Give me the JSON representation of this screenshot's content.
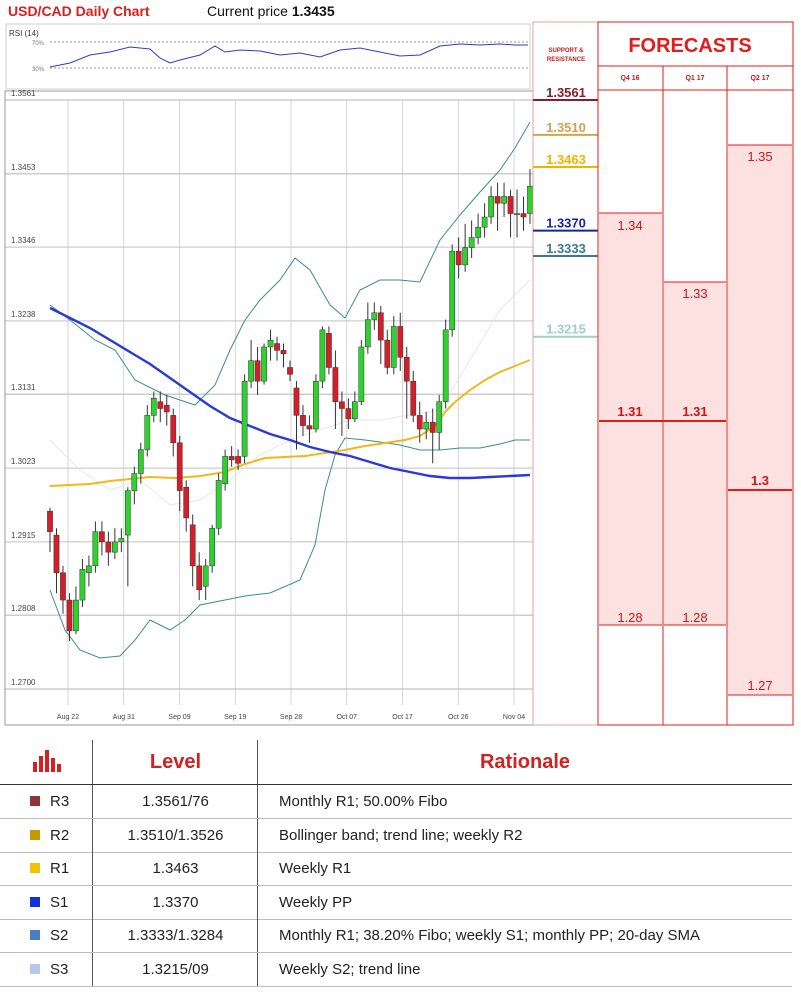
{
  "header": {
    "title": "USD/CAD Daily Chart",
    "current_label": "Current price",
    "current_value": "1.3435"
  },
  "rsi": {
    "label": "RSI (14)",
    "level_high": "70%",
    "level_low": "30%"
  },
  "sr_header": "SUPPORT & RESISTANCE",
  "forecasts": {
    "title": "FORECASTS",
    "columns": [
      "Q4 16",
      "Q1 17",
      "Q2 17"
    ],
    "q4_16": {
      "high": "1.34",
      "mid": "1.31",
      "low": "1.28"
    },
    "q1_17": {
      "high": "1.33",
      "mid": "1.31",
      "low": "1.28"
    },
    "q2_17": {
      "high": "1.35",
      "mid": "1.3",
      "low": "1.27"
    },
    "colors": {
      "band": "#fde0e0",
      "line": "#e21b1b",
      "text": "#c81818"
    }
  },
  "chart_data": {
    "type": "candlestick",
    "title": "USD/CAD Daily Chart",
    "y_ticks": [
      "1.3561",
      "1.3453",
      "1.3346",
      "1.3238",
      "1.3131",
      "1.3023",
      "1.2915",
      "1.2808",
      "1.2700"
    ],
    "ylim": [
      1.27,
      1.3561
    ],
    "x_ticks": [
      "Aug 22",
      "Aug 31",
      "Sep 09",
      "Sep 19",
      "Sep 28",
      "Oct 07",
      "Oct 17",
      "Oct 26",
      "Nov 04"
    ],
    "grid": true,
    "levels": [
      {
        "name": "R3",
        "value": 1.3561,
        "label": "1.3561",
        "color": "#8b1a2e"
      },
      {
        "name": "R2",
        "value": 1.351,
        "label": "1.3510",
        "color": "#d4a250"
      },
      {
        "name": "R1",
        "value": 1.3463,
        "label": "1.3463",
        "color": "#f2b300"
      },
      {
        "name": "S1",
        "value": 1.337,
        "label": "1.3370",
        "color": "#1424a8"
      },
      {
        "name": "S2",
        "value": 1.3333,
        "label": "1.3333",
        "color": "#3b7a95"
      },
      {
        "name": "S3",
        "value": 1.3215,
        "label": "1.3215",
        "color": "#9ed0c6"
      }
    ],
    "candles": [
      [
        1.296,
        1.293,
        1.2965,
        1.29
      ],
      [
        1.2925,
        1.287,
        1.2935,
        1.284
      ],
      [
        1.287,
        1.283,
        1.288,
        1.281
      ],
      [
        1.283,
        1.2785,
        1.284,
        1.277
      ],
      [
        1.2785,
        1.283,
        1.285,
        1.278
      ],
      [
        1.283,
        1.2875,
        1.289,
        1.282
      ],
      [
        1.287,
        1.288,
        1.2895,
        1.285
      ],
      [
        1.288,
        1.293,
        1.2945,
        1.287
      ],
      [
        1.293,
        1.2915,
        1.2945,
        1.2895
      ],
      [
        1.2915,
        1.29,
        1.293,
        1.288
      ],
      [
        1.29,
        1.2915,
        1.2935,
        1.289
      ],
      [
        1.2915,
        1.292,
        1.2935,
        1.29
      ],
      [
        1.2925,
        1.299,
        1.2995,
        1.285
      ],
      [
        1.299,
        1.3015,
        1.3025,
        1.297
      ],
      [
        1.3015,
        1.305,
        1.306,
        1.3
      ],
      [
        1.305,
        1.31,
        1.3115,
        1.304
      ],
      [
        1.31,
        1.3125,
        1.3135,
        1.309
      ],
      [
        1.312,
        1.311,
        1.3135,
        1.309
      ],
      [
        1.3115,
        1.3105,
        1.313,
        1.3085
      ],
      [
        1.31,
        1.306,
        1.311,
        1.304
      ],
      [
        1.306,
        1.299,
        1.307,
        1.296
      ],
      [
        1.2995,
        1.295,
        1.3005,
        1.293
      ],
      [
        1.294,
        1.288,
        1.2955,
        1.285
      ],
      [
        1.288,
        1.2845,
        1.29,
        1.283
      ],
      [
        1.285,
        1.288,
        1.289,
        1.283
      ],
      [
        1.288,
        1.2935,
        1.294,
        1.287
      ],
      [
        1.2935,
        1.3005,
        1.3015,
        1.2925
      ],
      [
        1.3,
        1.304,
        1.305,
        1.299
      ],
      [
        1.304,
        1.3035,
        1.3055,
        1.3025
      ],
      [
        1.304,
        1.303,
        1.305,
        1.302
      ],
      [
        1.304,
        1.315,
        1.316,
        1.303
      ],
      [
        1.315,
        1.318,
        1.321,
        1.314
      ],
      [
        1.318,
        1.315,
        1.32,
        1.313
      ],
      [
        1.315,
        1.32,
        1.3205,
        1.3145
      ],
      [
        1.32,
        1.321,
        1.3225,
        1.318
      ],
      [
        1.3205,
        1.3195,
        1.3215,
        1.318
      ],
      [
        1.3195,
        1.319,
        1.3205,
        1.317
      ],
      [
        1.317,
        1.316,
        1.318,
        1.315
      ],
      [
        1.314,
        1.31,
        1.315,
        1.305
      ],
      [
        1.31,
        1.3085,
        1.3115,
        1.307
      ],
      [
        1.3085,
        1.308,
        1.31,
        1.306
      ],
      [
        1.308,
        1.315,
        1.316,
        1.3075
      ],
      [
        1.315,
        1.3225,
        1.323,
        1.314
      ],
      [
        1.322,
        1.317,
        1.323,
        1.316
      ],
      [
        1.317,
        1.312,
        1.3195,
        1.308
      ],
      [
        1.312,
        1.311,
        1.3135,
        1.307
      ],
      [
        1.311,
        1.3095,
        1.3125,
        1.308
      ],
      [
        1.3095,
        1.312,
        1.3135,
        1.309
      ],
      [
        1.312,
        1.32,
        1.321,
        1.3115
      ],
      [
        1.32,
        1.324,
        1.3265,
        1.319
      ],
      [
        1.324,
        1.325,
        1.3265,
        1.3225
      ],
      [
        1.325,
        1.321,
        1.326,
        1.3175
      ],
      [
        1.321,
        1.317,
        1.3225,
        1.316
      ],
      [
        1.317,
        1.323,
        1.3245,
        1.316
      ],
      [
        1.323,
        1.3185,
        1.325,
        1.3165
      ],
      [
        1.3185,
        1.315,
        1.32,
        1.3095
      ],
      [
        1.315,
        1.31,
        1.3165,
        1.309
      ],
      [
        1.31,
        1.308,
        1.312,
        1.306
      ],
      [
        1.308,
        1.309,
        1.3105,
        1.3065
      ],
      [
        1.309,
        1.3075,
        1.311,
        1.303
      ],
      [
        1.3075,
        1.312,
        1.313,
        1.305
      ],
      [
        1.312,
        1.3225,
        1.324,
        1.311
      ],
      [
        1.3225,
        1.334,
        1.335,
        1.3215
      ],
      [
        1.334,
        1.332,
        1.336,
        1.33
      ],
      [
        1.332,
        1.3345,
        1.338,
        1.331
      ],
      [
        1.3345,
        1.336,
        1.3385,
        1.333
      ],
      [
        1.336,
        1.3375,
        1.3395,
        1.335
      ],
      [
        1.3375,
        1.339,
        1.341,
        1.336
      ],
      [
        1.339,
        1.342,
        1.3435,
        1.338
      ],
      [
        1.342,
        1.341,
        1.344,
        1.337
      ],
      [
        1.341,
        1.342,
        1.344,
        1.339
      ],
      [
        1.342,
        1.3395,
        1.343,
        1.336
      ],
      [
        1.3395,
        1.3395,
        1.343,
        1.336
      ],
      [
        1.3395,
        1.339,
        1.342,
        1.337
      ],
      [
        1.3395,
        1.3435,
        1.346,
        1.338
      ]
    ]
  },
  "table": {
    "headers": {
      "level": "Level",
      "rationale": "Rationale"
    },
    "rows": [
      {
        "tag": "R3",
        "color": "#8e3535",
        "level": "1.3561/76",
        "rationale": "Monthly R1; 50.00% Fibo"
      },
      {
        "tag": "R2",
        "color": "#c99700",
        "level": "1.3510/1.3526",
        "rationale": "Bollinger band; trend line; weekly R2"
      },
      {
        "tag": "R1",
        "color": "#f2c200",
        "level": "1.3463",
        "rationale": "Weekly R1"
      },
      {
        "tag": "S1",
        "color": "#1432d8",
        "level": "1.3370",
        "rationale": "Weekly PP"
      },
      {
        "tag": "S2",
        "color": "#4a7ebd",
        "level": "1.3333/1.3284",
        "rationale": "Monthly R1; 38.20% Fibo; weekly S1; monthly PP; 20-day SMA"
      },
      {
        "tag": "S3",
        "color": "#b7c8e6",
        "level": "1.3215/09",
        "rationale": "Weekly S2; trend line"
      }
    ]
  }
}
